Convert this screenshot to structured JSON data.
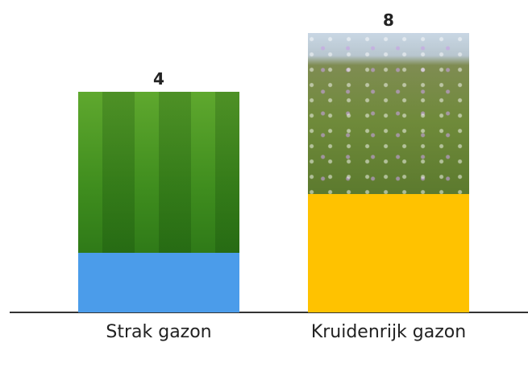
{
  "chart_data": {
    "type": "bar",
    "categories": [
      "Strak gazon",
      "Kruidenrijk gazon"
    ],
    "values": [
      4,
      8
    ],
    "colors": [
      "#4b9cea",
      "#ffc200"
    ]
  }
}
